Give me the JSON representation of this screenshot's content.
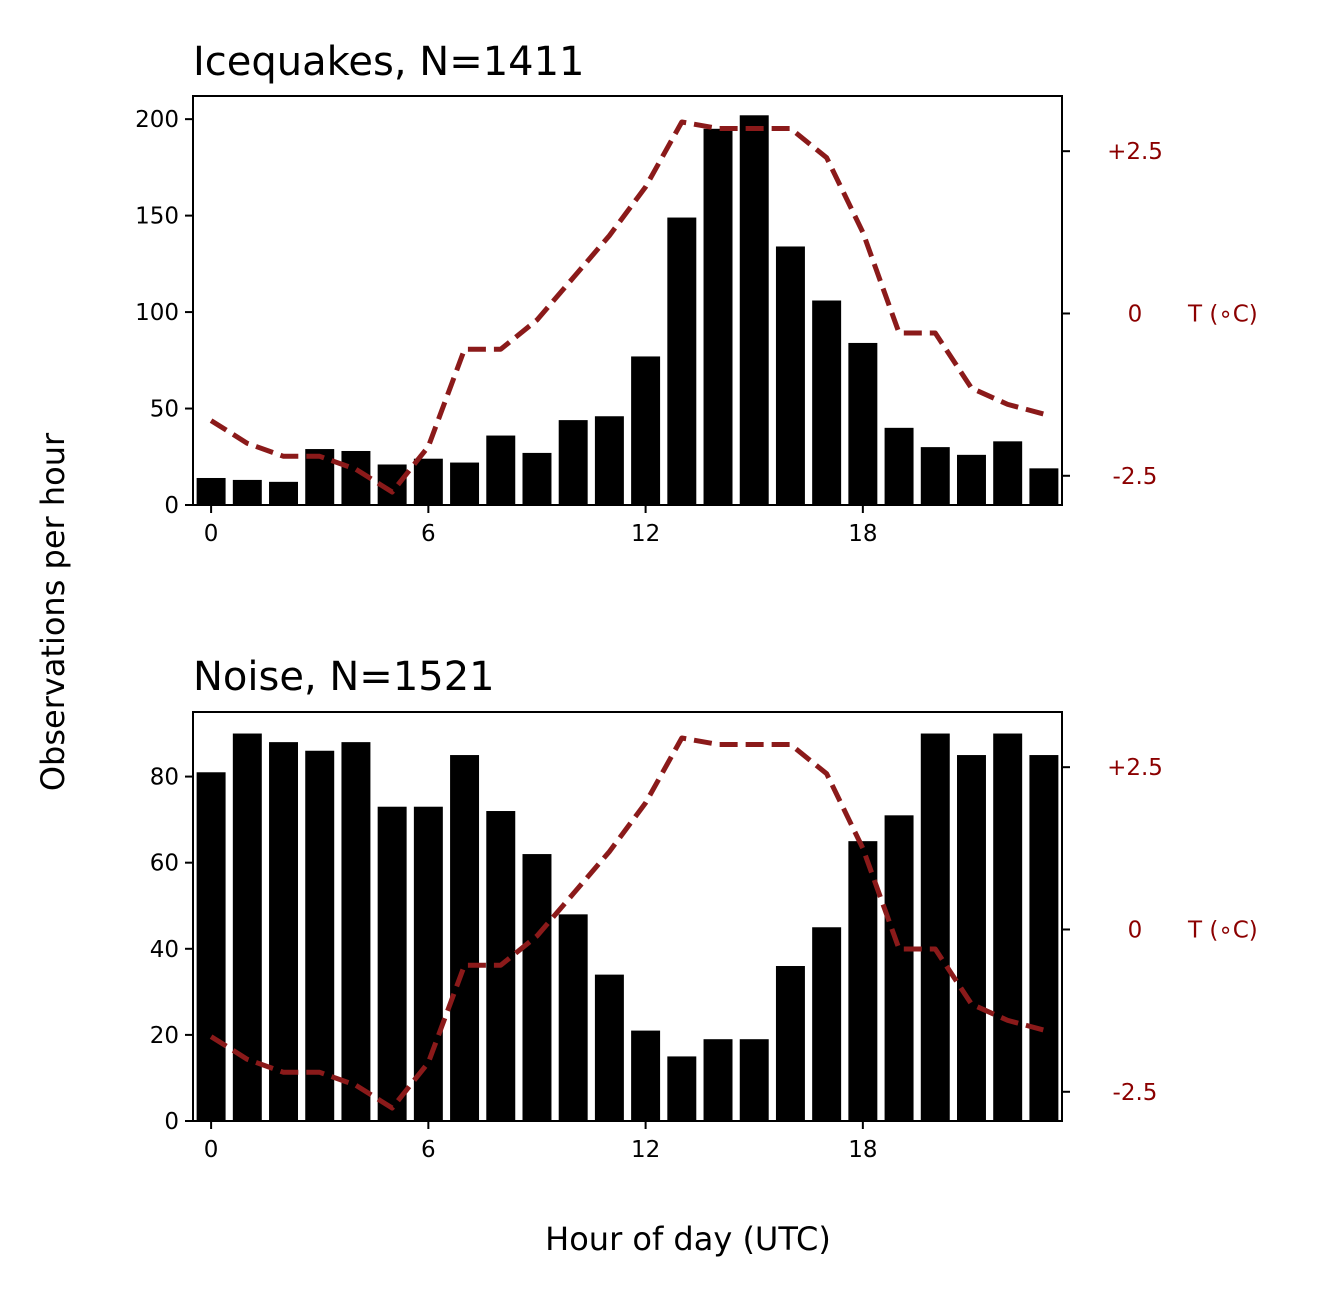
{
  "figure": {
    "ylabel": "Observations per hour",
    "xlabel": "Hour of day (UTC)",
    "right_axis_label": "T (∘C)",
    "bar_color": "#000000",
    "temp_color": "#8b1a1a",
    "temp_tick_color": "#8b0000"
  },
  "chart_data": [
    {
      "type": "bar",
      "title": "Icequakes, N=1411",
      "categories": [
        0,
        1,
        2,
        3,
        4,
        5,
        6,
        7,
        8,
        9,
        10,
        11,
        12,
        13,
        14,
        15,
        16,
        17,
        18,
        19,
        20,
        21,
        22,
        23
      ],
      "values": [
        14,
        13,
        12,
        29,
        28,
        21,
        24,
        22,
        36,
        27,
        44,
        46,
        77,
        149,
        195,
        202,
        134,
        106,
        84,
        40,
        30,
        26,
        33,
        19
      ],
      "ylim": [
        0,
        212
      ],
      "yticks": [
        0,
        50,
        100,
        150,
        200
      ],
      "xticks": [
        0,
        6,
        12,
        18
      ],
      "temperature": {
        "name": "T (∘C)",
        "ylim": [
          -2.95,
          3.35
        ],
        "yticks": [
          -2.5,
          0,
          2.5
        ],
        "ytick_labels": [
          "-2.5",
          "0",
          "+2.5"
        ],
        "x": [
          0,
          1,
          2,
          3,
          4,
          5,
          6,
          7,
          8,
          9,
          10,
          11,
          12,
          13,
          14,
          15,
          16,
          17,
          18,
          19,
          20,
          21,
          22,
          23
        ],
        "values": [
          -1.65,
          -2.0,
          -2.2,
          -2.2,
          -2.4,
          -2.75,
          -2.05,
          -0.55,
          -0.55,
          -0.1,
          0.55,
          1.2,
          1.95,
          2.95,
          2.85,
          2.85,
          2.85,
          2.4,
          1.25,
          -0.3,
          -0.3,
          -1.15,
          -1.4,
          -1.55
        ]
      }
    },
    {
      "type": "bar",
      "title": "Noise, N=1521",
      "categories": [
        0,
        1,
        2,
        3,
        4,
        5,
        6,
        7,
        8,
        9,
        10,
        11,
        12,
        13,
        14,
        15,
        16,
        17,
        18,
        19,
        20,
        21,
        22,
        23
      ],
      "values": [
        81,
        90,
        88,
        86,
        88,
        73,
        73,
        85,
        72,
        62,
        48,
        34,
        21,
        15,
        19,
        19,
        36,
        45,
        65,
        71,
        90,
        85,
        90,
        85
      ],
      "ylim": [
        0,
        95
      ],
      "yticks": [
        0,
        20,
        40,
        60,
        80
      ],
      "xticks": [
        0,
        6,
        12,
        18
      ],
      "temperature": {
        "name": "T (∘C)",
        "ylim": [
          -2.95,
          3.35
        ],
        "yticks": [
          -2.5,
          0,
          2.5
        ],
        "ytick_labels": [
          "-2.5",
          "0",
          "+2.5"
        ],
        "x": [
          0,
          1,
          2,
          3,
          4,
          5,
          6,
          7,
          8,
          9,
          10,
          11,
          12,
          13,
          14,
          15,
          16,
          17,
          18,
          19,
          20,
          21,
          22,
          23
        ],
        "values": [
          -1.65,
          -2.0,
          -2.2,
          -2.2,
          -2.4,
          -2.75,
          -2.05,
          -0.55,
          -0.55,
          -0.1,
          0.55,
          1.2,
          1.95,
          2.95,
          2.85,
          2.85,
          2.85,
          2.4,
          1.25,
          -0.3,
          -0.3,
          -1.15,
          -1.4,
          -1.55
        ]
      }
    }
  ]
}
